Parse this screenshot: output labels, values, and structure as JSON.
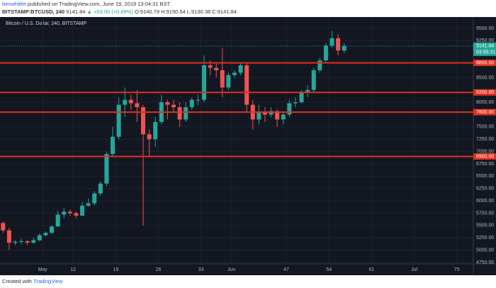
{
  "header": {
    "author": "benwhittle",
    "published": "published on TradingView.com, June 19, 2019 13:04:31 BST",
    "symbol": "BITSTAMP:BTCUSD, 240",
    "price": "9141.84",
    "change": "▲ +63.00 (+0.69%)",
    "ohlc": "O:9140.79 H:9150.54 L:9130.38 C:9141.84"
  },
  "footer": {
    "text": "Created with",
    "brand": "TradingView"
  },
  "chart_data": {
    "type": "candlestick",
    "title": "Bitcoin / U.S. Dollar, 240, BITSTAMP",
    "up_color": "#26a69a",
    "down_color": "#ef5350",
    "grid": true,
    "open": [
      5550,
      5400,
      5150,
      5170,
      5180,
      5150,
      5200,
      5300,
      5350,
      5480,
      5720,
      5780,
      5750,
      5700,
      5900,
      5950,
      6150,
      6350,
      6950,
      7300,
      7950,
      8050,
      7980,
      7900,
      7350,
      7250,
      7600,
      8000,
      7950,
      7900,
      7650,
      7900,
      8050,
      8050,
      8750,
      8700,
      8650,
      8300,
      8550,
      8600,
      8750,
      7950,
      7650,
      7800,
      7750,
      7820,
      7650,
      7750,
      7980,
      8000,
      8200,
      8250,
      8650,
      8850,
      9150,
      9300,
      9050
    ],
    "high": [
      5580,
      5450,
      5200,
      5220,
      5200,
      5250,
      5340,
      5380,
      5500,
      5800,
      5850,
      5820,
      5780,
      5980,
      6050,
      6200,
      6400,
      7000,
      7500,
      8100,
      8300,
      8150,
      8250,
      7950,
      7450,
      7700,
      8150,
      8050,
      8050,
      8000,
      8000,
      8100,
      8150,
      8950,
      8850,
      8780,
      9100,
      8600,
      8650,
      8800,
      8800,
      8050,
      7950,
      7900,
      7900,
      7850,
      7800,
      8050,
      8100,
      8250,
      8350,
      8700,
      8900,
      9200,
      9450,
      9380,
      9200
    ],
    "low": [
      5350,
      5000,
      5100,
      5120,
      5100,
      5130,
      5180,
      5280,
      5330,
      5470,
      5650,
      5700,
      5650,
      5690,
      5880,
      5900,
      6100,
      6300,
      6900,
      7250,
      7700,
      7850,
      7600,
      5500,
      6900,
      7100,
      7550,
      7650,
      7800,
      7500,
      7600,
      7850,
      7950,
      8000,
      8550,
      8500,
      8100,
      8250,
      8500,
      8550,
      7800,
      7450,
      7550,
      7600,
      7700,
      7500,
      7550,
      7700,
      7900,
      7980,
      8100,
      8200,
      8600,
      8800,
      9100,
      8950,
      9000
    ],
    "close": [
      5400,
      5150,
      5170,
      5180,
      5150,
      5200,
      5300,
      5350,
      5480,
      5720,
      5780,
      5750,
      5700,
      5900,
      5950,
      6150,
      6350,
      6950,
      7300,
      7950,
      8050,
      7980,
      7900,
      7350,
      7250,
      7600,
      8000,
      7950,
      7900,
      7650,
      7900,
      8050,
      8050,
      8750,
      8700,
      8650,
      8300,
      8550,
      8600,
      8750,
      7950,
      7650,
      7800,
      7750,
      7820,
      7650,
      7750,
      7980,
      8000,
      8200,
      8250,
      8650,
      8850,
      9150,
      9300,
      9050,
      9141.84
    ],
    "xlim": [
      0,
      77.7
    ],
    "xticks": [
      {
        "value": 7,
        "label": "May"
      },
      12,
      19,
      26,
      33,
      {
        "value": 38,
        "label": "Jun"
      },
      47,
      54,
      61,
      {
        "value": 68,
        "label": "Jul"
      },
      75
    ],
    "ylim": [
      4720,
      9730
    ],
    "yticks": [
      {
        "value": 9500,
        "label": "9500.00"
      },
      {
        "value": 9250,
        "label": "9250.00"
      },
      {
        "value": 8500,
        "label": "8500.00"
      },
      {
        "value": 8000,
        "label": "8000.00"
      },
      {
        "value": 7500,
        "label": "7500.00"
      },
      {
        "value": 7250,
        "label": "7250.00"
      },
      {
        "value": 7000,
        "label": "7000.00"
      },
      {
        "value": 6750,
        "label": "6750.00"
      },
      {
        "value": 6500,
        "label": "6500.00"
      },
      {
        "value": 6250,
        "label": "6250.00"
      },
      {
        "value": 6000,
        "label": "6000.00"
      },
      {
        "value": 5750,
        "label": "5750.00"
      },
      {
        "value": 5500,
        "label": "5500.00"
      },
      {
        "value": 5250,
        "label": "5250.00"
      },
      {
        "value": 5000,
        "label": "5000.00"
      },
      {
        "value": 4750,
        "label": "4750.00"
      }
    ],
    "levels": [
      {
        "value": 8800,
        "label": "8800.00"
      },
      {
        "value": 8200,
        "label": "8200.00"
      },
      {
        "value": 7800,
        "label": "7800.00"
      },
      {
        "value": 6900,
        "label": "6900.00"
      }
    ],
    "level_color": "#e0301e",
    "last": {
      "value": 9141.84,
      "label": "9141.84"
    },
    "countdown": "03:55:31"
  }
}
